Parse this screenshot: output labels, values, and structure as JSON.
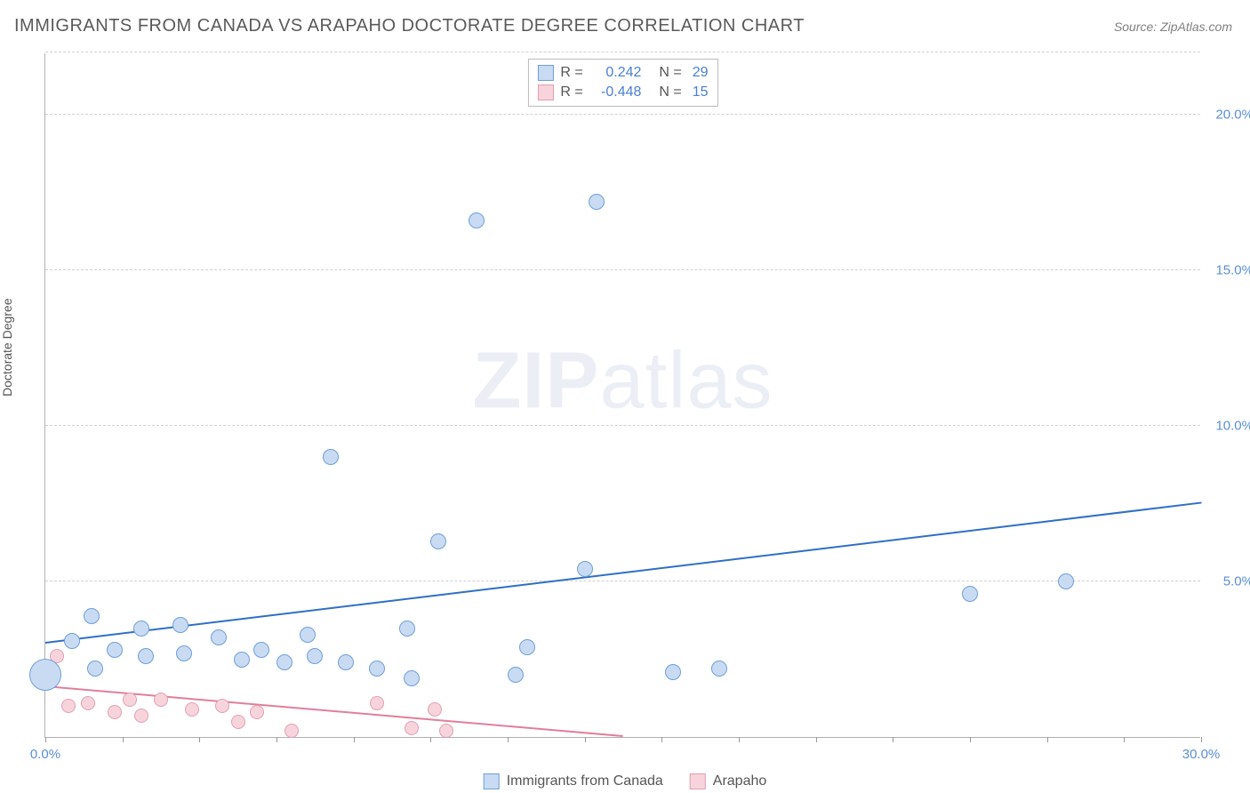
{
  "title": "IMMIGRANTS FROM CANADA VS ARAPAHO DOCTORATE DEGREE CORRELATION CHART",
  "source": "Source: ZipAtlas.com",
  "watermark_bold": "ZIP",
  "watermark_rest": "atlas",
  "ylabel": "Doctorate Degree",
  "chart": {
    "type": "scatter",
    "xlim": [
      0,
      30
    ],
    "ylim": [
      0,
      22
    ],
    "x_ticks_minor_step": 2,
    "x_axis_labels": [
      {
        "v": 0,
        "t": "0.0%"
      },
      {
        "v": 30,
        "t": "30.0%"
      }
    ],
    "y_axis_labels": [
      {
        "v": 5,
        "t": "5.0%"
      },
      {
        "v": 10,
        "t": "10.0%"
      },
      {
        "v": 15,
        "t": "15.0%"
      },
      {
        "v": 20,
        "t": "20.0%"
      }
    ],
    "y_gridlines": [
      5,
      10,
      15,
      20,
      22
    ],
    "background_color": "#ffffff",
    "grid_color": "#d0d0d0",
    "series": [
      {
        "name": "Immigrants from Canada",
        "fill": "#c9dbf2",
        "stroke": "#6f9fd8",
        "trend_color": "#2f6fc5",
        "marker_r": 9,
        "correlation_R": "0.242",
        "correlation_N": "29",
        "trend": {
          "x1": 0,
          "y1": 3.0,
          "x2": 30,
          "y2": 7.5
        },
        "points": [
          {
            "x": 0.0,
            "y": 2.0,
            "r": 18
          },
          {
            "x": 0.7,
            "y": 3.1
          },
          {
            "x": 1.2,
            "y": 3.9
          },
          {
            "x": 1.3,
            "y": 2.2
          },
          {
            "x": 1.8,
            "y": 2.8
          },
          {
            "x": 2.5,
            "y": 3.5
          },
          {
            "x": 2.6,
            "y": 2.6
          },
          {
            "x": 3.5,
            "y": 3.6
          },
          {
            "x": 3.6,
            "y": 2.7
          },
          {
            "x": 4.5,
            "y": 3.2
          },
          {
            "x": 5.1,
            "y": 2.5
          },
          {
            "x": 5.6,
            "y": 2.8
          },
          {
            "x": 6.2,
            "y": 2.4
          },
          {
            "x": 6.8,
            "y": 3.3
          },
          {
            "x": 7.0,
            "y": 2.6
          },
          {
            "x": 7.8,
            "y": 2.4
          },
          {
            "x": 7.4,
            "y": 9.0
          },
          {
            "x": 8.6,
            "y": 2.2
          },
          {
            "x": 9.4,
            "y": 3.5
          },
          {
            "x": 9.5,
            "y": 1.9
          },
          {
            "x": 10.2,
            "y": 6.3
          },
          {
            "x": 11.2,
            "y": 16.6
          },
          {
            "x": 12.2,
            "y": 2.0
          },
          {
            "x": 12.5,
            "y": 2.9
          },
          {
            "x": 14.0,
            "y": 5.4
          },
          {
            "x": 14.3,
            "y": 17.2
          },
          {
            "x": 16.3,
            "y": 2.1
          },
          {
            "x": 17.5,
            "y": 2.2
          },
          {
            "x": 24.0,
            "y": 4.6
          },
          {
            "x": 26.5,
            "y": 5.0
          }
        ]
      },
      {
        "name": "Arapaho",
        "fill": "#f7d4dc",
        "stroke": "#e39eb0",
        "trend_color": "#e07f9b",
        "marker_r": 8,
        "correlation_R": "-0.448",
        "correlation_N": "15",
        "trend": {
          "x1": 0,
          "y1": 1.6,
          "x2": 15,
          "y2": 0.0
        },
        "points": [
          {
            "x": 0.3,
            "y": 2.6
          },
          {
            "x": 0.6,
            "y": 1.0
          },
          {
            "x": 1.1,
            "y": 1.1
          },
          {
            "x": 1.8,
            "y": 0.8
          },
          {
            "x": 2.2,
            "y": 1.2
          },
          {
            "x": 2.5,
            "y": 0.7
          },
          {
            "x": 3.0,
            "y": 1.2
          },
          {
            "x": 3.8,
            "y": 0.9
          },
          {
            "x": 4.6,
            "y": 1.0
          },
          {
            "x": 5.0,
            "y": 0.5
          },
          {
            "x": 5.5,
            "y": 0.8
          },
          {
            "x": 6.4,
            "y": 0.2
          },
          {
            "x": 8.6,
            "y": 1.1
          },
          {
            "x": 9.5,
            "y": 0.3
          },
          {
            "x": 10.1,
            "y": 0.9
          },
          {
            "x": 10.4,
            "y": 0.2
          }
        ]
      }
    ]
  },
  "legend": {
    "series1": "Immigrants from Canada",
    "series2": "Arapaho"
  },
  "corr_box": {
    "r_label": "R =",
    "n_label": "N ="
  }
}
